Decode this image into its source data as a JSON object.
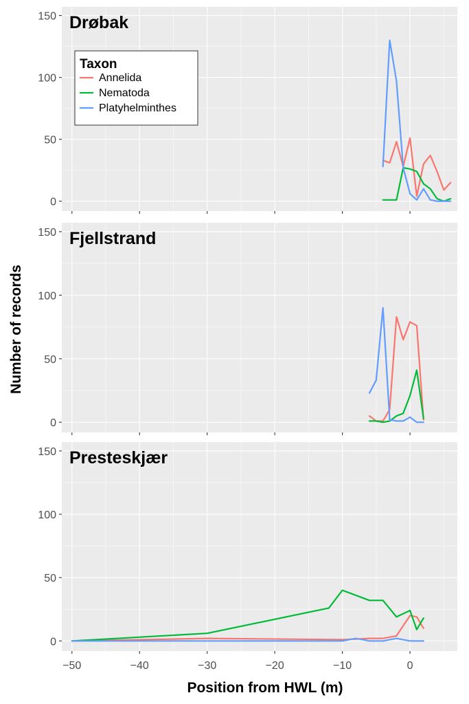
{
  "chart_data": {
    "type": "line",
    "xlabel": "Position from HWL (m)",
    "ylabel": "Number of records",
    "xlim": [
      -51.5,
      7
    ],
    "ylim": [
      -8,
      157
    ],
    "x_ticks": [
      -50,
      -40,
      -30,
      -20,
      -10,
      0
    ],
    "x_tick_labels": [
      "−50",
      "−40",
      "−30",
      "−20",
      "−10",
      "0"
    ],
    "y_ticks": [
      0,
      50,
      100,
      150
    ],
    "y_tick_labels": [
      "0",
      "50",
      "100",
      "150"
    ],
    "grid": true,
    "legend": {
      "title": "Taxon",
      "placement": "top-left",
      "entries": [
        "Annelida",
        "Nematoda",
        "Platyhelminthes"
      ]
    },
    "colors": {
      "Annelida": "#F8766D",
      "Nematoda": "#00BA38",
      "Platyhelminthes": "#619CFF"
    },
    "panels": [
      {
        "title": "Drøbak",
        "series": [
          {
            "name": "Annelida",
            "x": [
              -4,
              -3,
              -2,
              -1,
              0,
              1,
              2,
              3,
              4,
              5,
              6
            ],
            "y": [
              33,
              31,
              48,
              28,
              51,
              4,
              30,
              37,
              24,
              9,
              15
            ]
          },
          {
            "name": "Nematoda",
            "x": [
              -4,
              -2,
              -1,
              0,
              1,
              2,
              3,
              4,
              5,
              6
            ],
            "y": [
              1,
              1,
              27,
              26,
              24,
              14,
              10,
              2,
              0,
              2
            ]
          },
          {
            "name": "Platyhelminthes",
            "x": [
              -4,
              -3,
              -2,
              -1,
              0,
              1,
              2,
              3,
              4,
              5,
              6
            ],
            "y": [
              28,
              130,
              97,
              27,
              6,
              1,
              10,
              1,
              0,
              0,
              0
            ]
          }
        ]
      },
      {
        "title": "Fjellstrand",
        "series": [
          {
            "name": "Annelida",
            "x": [
              -6,
              -5,
              -4,
              -3,
              -2,
              -1,
              0,
              1,
              2
            ],
            "y": [
              5,
              1,
              1,
              10,
              83,
              65,
              79,
              76,
              2
            ]
          },
          {
            "name": "Nematoda",
            "x": [
              -6,
              -5,
              -4,
              -3,
              -2,
              -1,
              0,
              1,
              2
            ],
            "y": [
              1,
              1,
              0,
              1,
              5,
              7,
              21,
              41,
              3
            ]
          },
          {
            "name": "Platyhelminthes",
            "x": [
              -6,
              -5,
              -4,
              -3,
              -2,
              -1,
              0,
              1,
              2
            ],
            "y": [
              23,
              33,
              90,
              2,
              1,
              1,
              4,
              0,
              0
            ]
          }
        ]
      },
      {
        "title": "Presteskjær",
        "series": [
          {
            "name": "Annelida",
            "x": [
              -50,
              -30,
              -10,
              -6,
              -4,
              -2,
              0,
              1,
              2
            ],
            "y": [
              0,
              2,
              1,
              2,
              2,
              4,
              20,
              19,
              10
            ]
          },
          {
            "name": "Nematoda",
            "x": [
              -50,
              -30,
              -12,
              -10,
              -6,
              -4,
              -2,
              0,
              1,
              2
            ],
            "y": [
              0,
              6,
              26,
              40,
              32,
              32,
              19,
              24,
              9,
              18
            ]
          },
          {
            "name": "Platyhelminthes",
            "x": [
              -50,
              -30,
              -10,
              -8,
              -6,
              -4,
              -2,
              0,
              2
            ],
            "y": [
              0,
              0,
              0,
              2,
              0,
              0,
              2,
              0,
              0
            ]
          }
        ]
      }
    ]
  }
}
